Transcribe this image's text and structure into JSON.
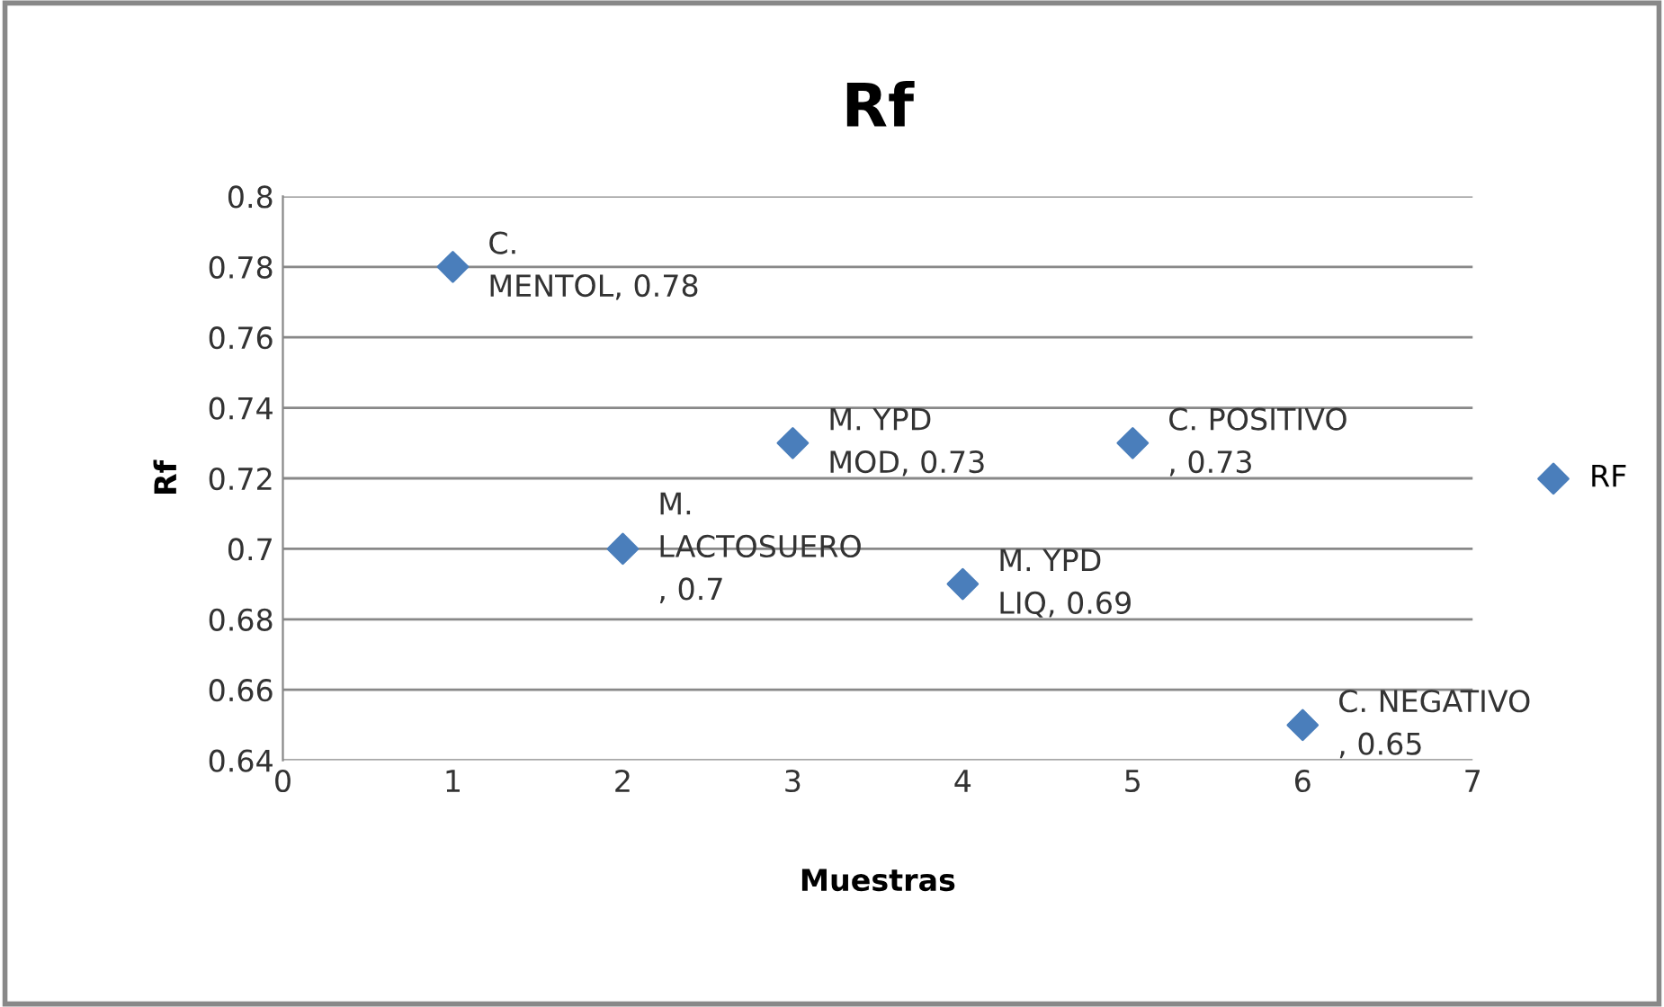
{
  "chart_data": {
    "type": "scatter",
    "title": "Rf",
    "xlabel": "Muestras",
    "ylabel": "Rf",
    "x": [
      1,
      2,
      3,
      4,
      5,
      6
    ],
    "series": [
      {
        "name": "RF",
        "color": "#4a7ebb",
        "values": [
          0.78,
          0.7,
          0.73,
          0.69,
          0.73,
          0.65
        ],
        "value_labels": [
          "C.\nMENTOL, 0.78",
          "M.\nLACTOSUERO\n, 0.7",
          "M. YPD\nMOD, 0.73",
          "M. YPD\nLIQ, 0.69",
          "C. POSITIVO\n, 0.73",
          "C. NEGATIVO\n, 0.65"
        ]
      }
    ],
    "xlim": [
      0,
      7
    ],
    "xticks": [
      0,
      1,
      2,
      3,
      4,
      5,
      6,
      7
    ],
    "ylim": [
      0.64,
      0.8
    ],
    "yticks": [
      0.64,
      0.66,
      0.68,
      0.7,
      0.72,
      0.74,
      0.76,
      0.78,
      0.8
    ],
    "grid": "y",
    "legend": "right",
    "marker": "diamond"
  }
}
